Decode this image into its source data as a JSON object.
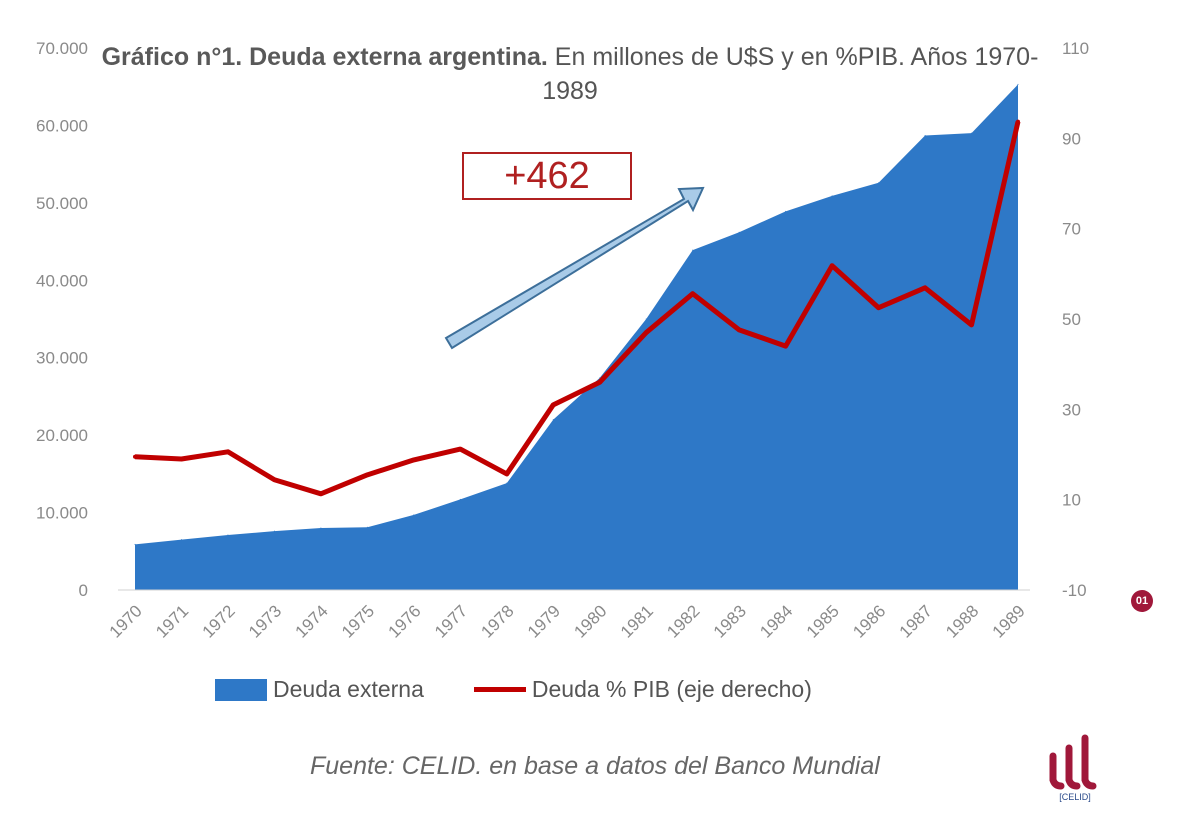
{
  "chart_data": {
    "type": "area+line",
    "title_bold": "Gráfico n°1. Deuda externa argentina.",
    "title_rest": "En millones de U$S y en %PIB. Años 1970-1989",
    "categories": [
      "1970",
      "1971",
      "1972",
      "1973",
      "1974",
      "1975",
      "1976",
      "1977",
      "1978",
      "1979",
      "1980",
      "1981",
      "1982",
      "1983",
      "1984",
      "1985",
      "1986",
      "1987",
      "1988",
      "1989"
    ],
    "series": [
      {
        "name": "Deuda externa",
        "type": "area",
        "axis": "left",
        "color": "#2e78c7",
        "values": [
          5900,
          6500,
          7100,
          7600,
          8000,
          8100,
          9700,
          11700,
          13800,
          22000,
          27400,
          35000,
          43900,
          46200,
          48900,
          50900,
          52600,
          58700,
          59000,
          65300
        ]
      },
      {
        "name": "Deuda % PIB (eje derecho)",
        "type": "line",
        "axis": "right",
        "color": "#c00000",
        "values": [
          19.5,
          19,
          20.6,
          14.4,
          11.3,
          15.5,
          18.8,
          21.2,
          15.7,
          31,
          36,
          47,
          55.6,
          47.6,
          44,
          61.8,
          52.5,
          56.9,
          48.7,
          93.7
        ]
      }
    ],
    "left_axis": {
      "ylim": [
        0,
        70000
      ],
      "ticks": [
        "0",
        "10.000",
        "20.000",
        "30.000",
        "40.000",
        "50.000",
        "60.000",
        "70.000"
      ]
    },
    "right_axis": {
      "ylim": [
        -10,
        110
      ],
      "ticks": [
        "-10",
        "10",
        "30",
        "50",
        "70",
        "90",
        "110"
      ]
    },
    "annotation": "+462",
    "grid": false,
    "legend": "bottom"
  },
  "source": "Fuente: CELID. en base a datos del Banco Mundial",
  "logo_text": "[CELID]",
  "badge": "01"
}
